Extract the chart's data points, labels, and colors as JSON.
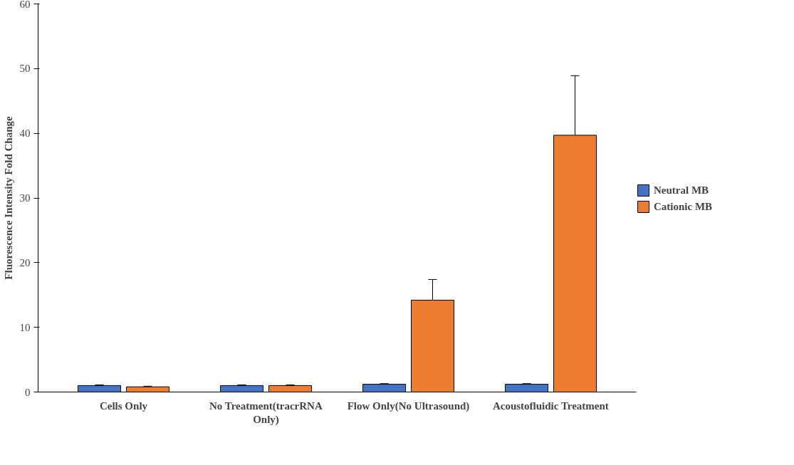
{
  "chart_data": {
    "type": "bar",
    "ylabel": "Fluorescence Intensity Fold Change",
    "categories": [
      "Cells Only",
      "No Treatment(tracrRNA Only)",
      "Flow Only(No Ultrasound)",
      "Acoustofluidic Treatment"
    ],
    "series": [
      {
        "name": "Neutral MB",
        "color": "#4472c4",
        "values": [
          1.0,
          1.0,
          1.2,
          1.2
        ],
        "errors": [
          0.1,
          0.1,
          0.1,
          0.1
        ]
      },
      {
        "name": "Cationic MB",
        "color": "#ed7d31",
        "values": [
          0.8,
          1.0,
          14.2,
          39.7
        ],
        "errors": [
          0.1,
          0.1,
          3.2,
          9.2
        ]
      }
    ],
    "ylim": [
      0,
      60
    ],
    "yticks": [
      0,
      10,
      20,
      30,
      40,
      50,
      60
    ],
    "grid": false,
    "legend": "right"
  }
}
